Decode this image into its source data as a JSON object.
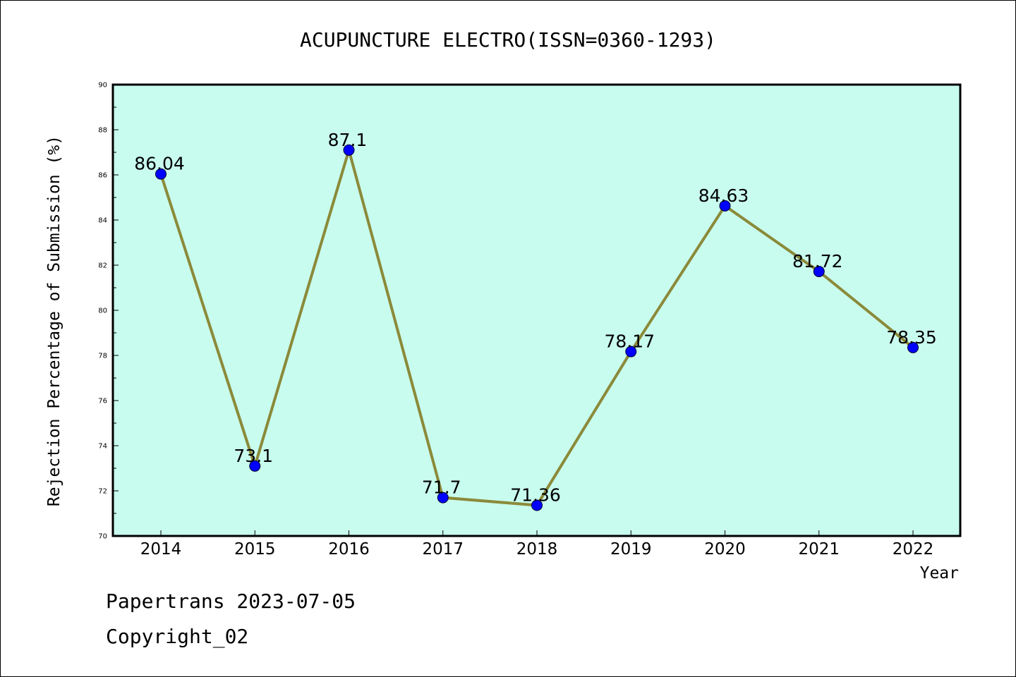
{
  "chart_data": {
    "type": "line",
    "title": "ACUPUNCTURE ELECTRO(ISSN=0360-1293)",
    "xlabel": "Year",
    "ylabel": "Rejection Percentage of Submission (%)",
    "categories": [
      "2014",
      "2015",
      "2016",
      "2017",
      "2018",
      "2019",
      "2020",
      "2021",
      "2022"
    ],
    "values": [
      86.04,
      73.1,
      87.1,
      71.7,
      71.36,
      78.17,
      84.63,
      81.72,
      78.35
    ],
    "data_labels": [
      "86.04",
      "73.1",
      "87.1",
      "71.7",
      "71.36",
      "78.17",
      "84.63",
      "81.72",
      "78.35"
    ],
    "ylim": [
      70,
      90
    ],
    "yticks": [
      "70",
      "72",
      "74",
      "76",
      "78",
      "80",
      "82",
      "84",
      "86",
      "88",
      "90"
    ],
    "grid": false,
    "legend": "none",
    "colors": {
      "plot_background": "#c8fcee",
      "line": "#8b8a3a",
      "marker": "#0000ff"
    }
  },
  "footer": {
    "source": "Papertrans 2023-07-05",
    "copyright": "Copyright_02"
  }
}
